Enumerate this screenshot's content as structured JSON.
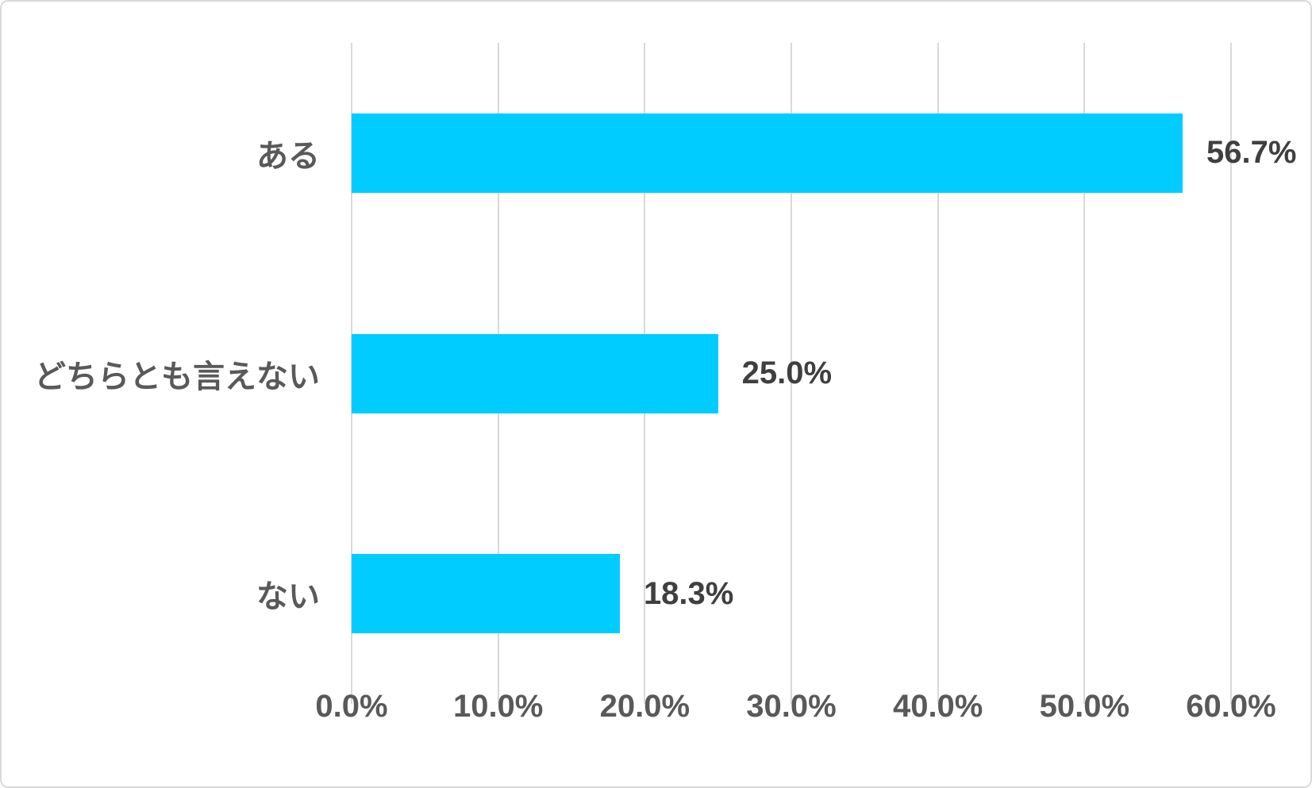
{
  "chart_data": {
    "type": "bar",
    "orientation": "horizontal",
    "title": "",
    "categories": [
      "ある",
      "どちらとも言えない",
      "ない"
    ],
    "values": [
      56.7,
      25.0,
      18.3
    ],
    "data_labels": [
      "56.7%",
      "25.0%",
      "18.3%"
    ],
    "x_axis": {
      "min": 0,
      "max": 60,
      "tick_step": 10,
      "tick_labels": [
        "0.0%",
        "10.0%",
        "20.0%",
        "30.0%",
        "40.0%",
        "50.0%",
        "60.0%"
      ]
    },
    "grid": "vertical-only",
    "legend": null,
    "colors": {
      "bar": "#00CCFF",
      "gridline": "#D9D9D9",
      "canvas_border": "#D9D9D9",
      "background": "#FFFFFF",
      "category_text": "#595959",
      "tick_text": "#595959",
      "value_text": "#3F3F3F"
    }
  }
}
